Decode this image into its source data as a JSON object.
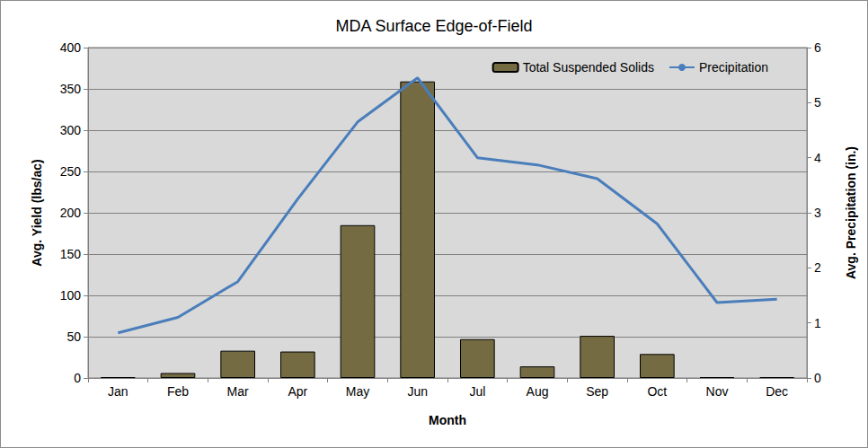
{
  "chart_data": {
    "type": "bar",
    "title": "MDA Surface Edge-of-Field",
    "x_label": "Month",
    "y_label": "Avg. Yield (lbs/ac)",
    "y2_label": "Avg. Precipitation (in.)",
    "categories": [
      "Jan",
      "Feb",
      "Mar",
      "Apr",
      "May",
      "Jun",
      "Jul",
      "Aug",
      "Sep",
      "Oct",
      "Nov",
      "Dec"
    ],
    "series": [
      {
        "name": "Total Suspended Solids",
        "type": "bar",
        "color": "#756b43",
        "values": [
          1,
          6,
          33,
          32,
          185,
          359,
          47,
          14,
          51,
          29,
          1,
          1
        ]
      },
      {
        "name": "Precipitation",
        "type": "line",
        "axis": "y2",
        "color": "#4a7ebb",
        "values": [
          0.82,
          1.1,
          1.75,
          3.25,
          4.65,
          5.45,
          4.0,
          3.87,
          3.62,
          2.8,
          1.37,
          1.43
        ]
      }
    ],
    "ylim": [
      0,
      400
    ],
    "yticks": [
      0,
      50,
      100,
      150,
      200,
      250,
      300,
      350,
      400
    ],
    "y2lim": [
      0,
      6
    ],
    "y2ticks": [
      0,
      1,
      2,
      3,
      4,
      5,
      6
    ],
    "grid": true,
    "legend": "top-right"
  }
}
